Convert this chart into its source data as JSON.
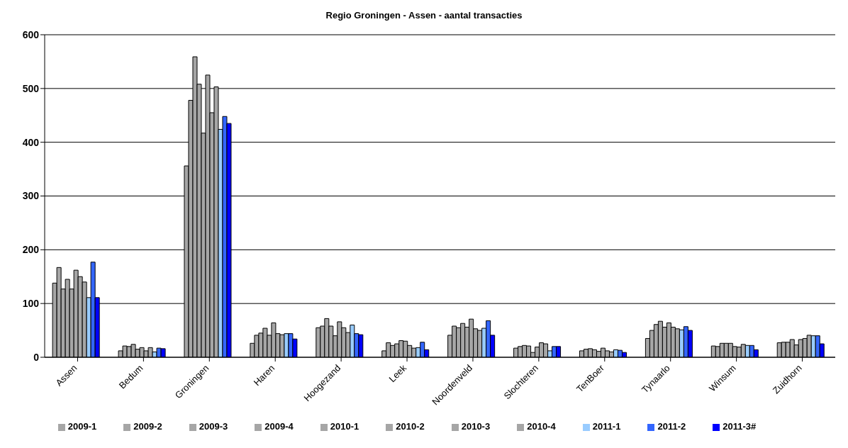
{
  "chart_data": {
    "type": "bar",
    "title": "Regio Groningen - Assen - aantal transacties",
    "categories": [
      "Assen",
      "Bedum",
      "Groningen",
      "Haren",
      "Hoogezand",
      "Leek",
      "Noordenveld",
      "Slochteren",
      "TenBoer",
      "Tynaarlo",
      "Winsum",
      "Zuidhorn"
    ],
    "series": [
      {
        "name": "2009-1",
        "color": "#a6a6a6",
        "values": [
          138,
          12,
          356,
          26,
          55,
          12,
          41,
          17,
          12,
          35,
          21,
          27
        ]
      },
      {
        "name": "2009-2",
        "color": "#a6a6a6",
        "values": [
          167,
          21,
          478,
          41,
          58,
          27,
          58,
          20,
          15,
          50,
          20,
          28
        ]
      },
      {
        "name": "2009-3",
        "color": "#a6a6a6",
        "values": [
          127,
          20,
          559,
          45,
          72,
          22,
          55,
          22,
          16,
          61,
          26,
          28
        ]
      },
      {
        "name": "2009-4",
        "color": "#a6a6a6",
        "values": [
          145,
          24,
          508,
          54,
          58,
          25,
          63,
          21,
          14,
          67,
          26,
          33
        ]
      },
      {
        "name": "2010-1",
        "color": "#a6a6a6",
        "values": [
          127,
          15,
          417,
          41,
          40,
          31,
          56,
          9,
          11,
          56,
          26,
          23
        ]
      },
      {
        "name": "2010-2",
        "color": "#a6a6a6",
        "values": [
          162,
          18,
          525,
          64,
          66,
          30,
          71,
          19,
          17,
          64,
          20,
          33
        ]
      },
      {
        "name": "2010-3",
        "color": "#a6a6a6",
        "values": [
          150,
          12,
          455,
          44,
          55,
          22,
          53,
          27,
          12,
          56,
          19,
          35
        ]
      },
      {
        "name": "2010-4",
        "color": "#a6a6a6",
        "values": [
          140,
          18,
          503,
          42,
          46,
          17,
          50,
          25,
          10,
          53,
          24,
          41
        ]
      },
      {
        "name": "2011-1",
        "color": "#99ccff",
        "values": [
          111,
          10,
          424,
          44,
          60,
          18,
          54,
          12,
          14,
          51,
          22,
          40
        ]
      },
      {
        "name": "2011-2",
        "color": "#3366ff",
        "values": [
          177,
          17,
          448,
          44,
          44,
          28,
          68,
          20,
          13,
          57,
          22,
          40
        ]
      },
      {
        "name": "2011-3#",
        "color": "#0000ff",
        "values": [
          111,
          16,
          435,
          34,
          42,
          14,
          41,
          20,
          9,
          50,
          14,
          25
        ]
      }
    ],
    "ylim": [
      0,
      600
    ],
    "yticks": [
      0,
      100,
      200,
      300,
      400,
      500,
      600
    ],
    "grid": "y",
    "legend": "bottom"
  }
}
